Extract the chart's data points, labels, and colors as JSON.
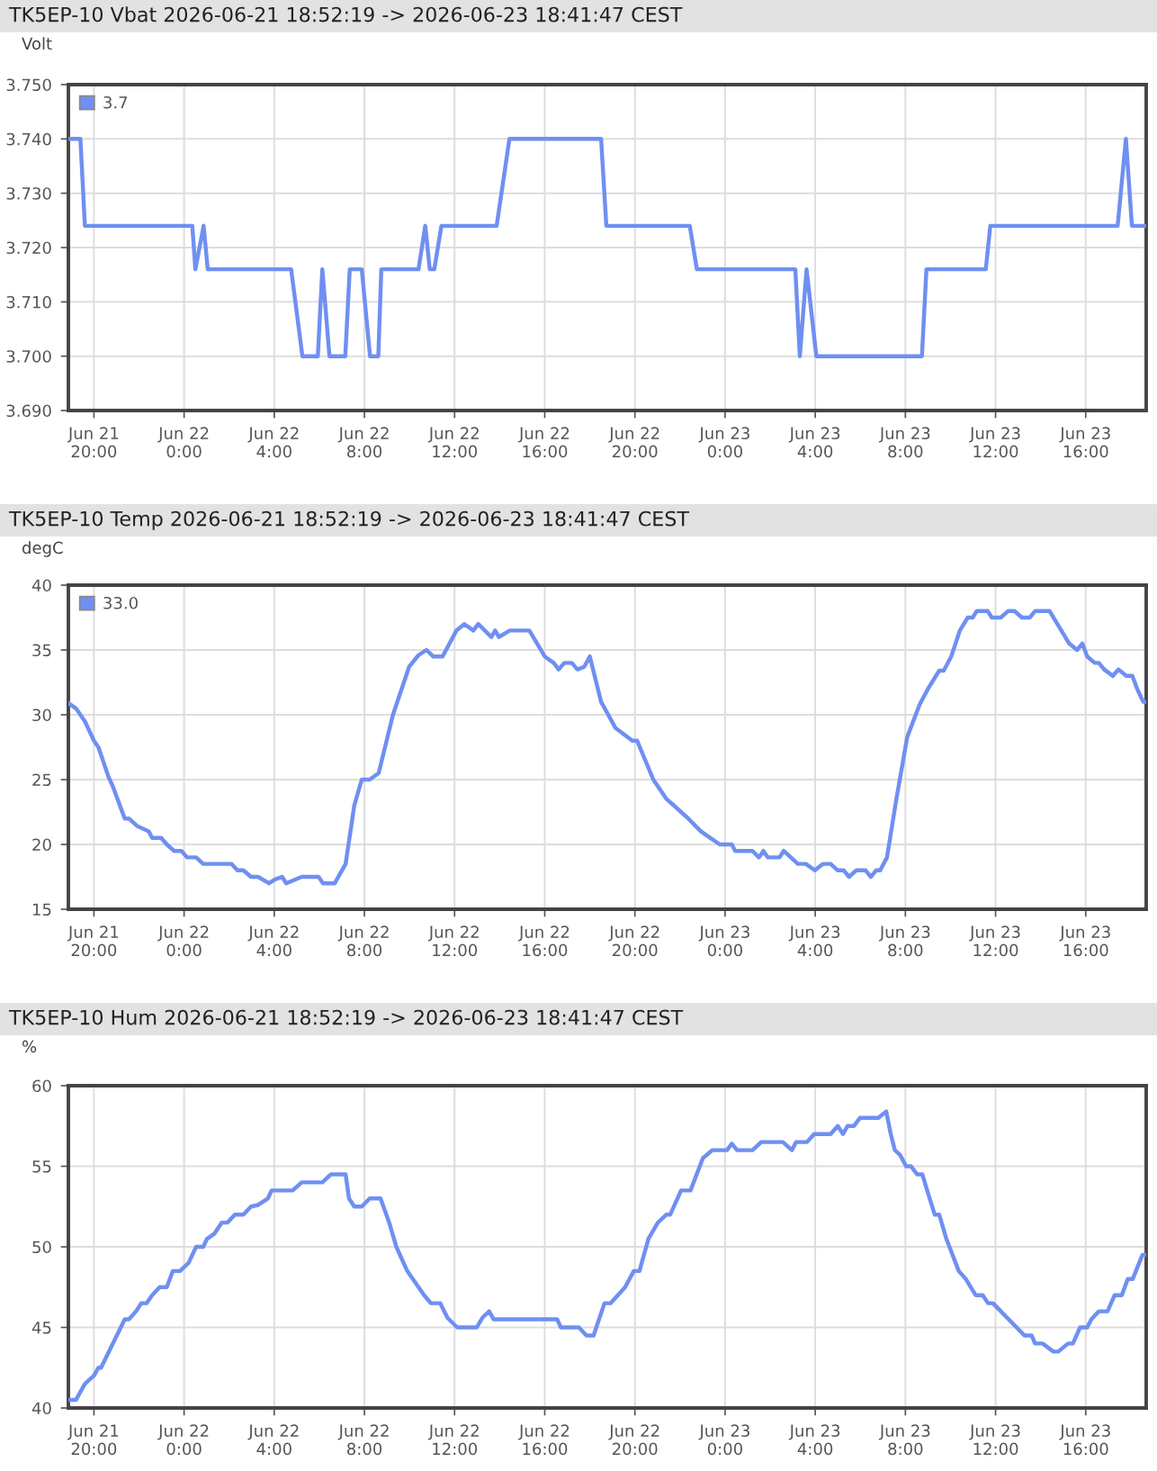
{
  "chart_data": [
    {
      "type": "line",
      "title": "TK5EP-10 Vbat 2026-06-21 18:52:19 -> 2026-06-23 18:41:47 CEST",
      "ylabel": "Volt",
      "legend": "top left",
      "grid": true,
      "xlim": [
        "2026-06-21T18:52",
        "2026-06-23T18:41"
      ],
      "ylim": [
        3.69,
        3.75
      ],
      "xticks": [
        {
          "value": "2026-06-21T20:00",
          "label": "Jun 21\n20:00"
        },
        {
          "value": "2026-06-22T00:00",
          "label": "Jun 22\n0:00"
        },
        {
          "value": "2026-06-22T04:00",
          "label": "Jun 22\n4:00"
        },
        {
          "value": "2026-06-22T08:00",
          "label": "Jun 22\n8:00"
        },
        {
          "value": "2026-06-22T12:00",
          "label": "Jun 22\n12:00"
        },
        {
          "value": "2026-06-22T16:00",
          "label": "Jun 22\n16:00"
        },
        {
          "value": "2026-06-22T20:00",
          "label": "Jun 22\n20:00"
        },
        {
          "value": "2026-06-23T00:00",
          "label": "Jun 23\n0:00"
        },
        {
          "value": "2026-06-23T04:00",
          "label": "Jun 23\n4:00"
        },
        {
          "value": "2026-06-23T08:00",
          "label": "Jun 23\n8:00"
        },
        {
          "value": "2026-06-23T12:00",
          "label": "Jun 23\n12:00"
        },
        {
          "value": "2026-06-23T16:00",
          "label": "Jun 23\n16:00"
        }
      ],
      "yticks": [
        {
          "value": 3.69,
          "label": "3.690"
        },
        {
          "value": 3.7,
          "label": "3.700"
        },
        {
          "value": 3.71,
          "label": "3.710"
        },
        {
          "value": 3.72,
          "label": "3.720"
        },
        {
          "value": 3.73,
          "label": "3.730"
        },
        {
          "value": 3.74,
          "label": "3.740"
        },
        {
          "value": 3.75,
          "label": "3.750"
        }
      ],
      "series": [
        {
          "name": "3.7",
          "color": "#6f8ff2",
          "x": [
            "2026-06-21T18:52",
            "2026-06-21T19:24",
            "2026-06-21T19:36",
            "2026-06-22T00:22",
            "2026-06-22T00:30",
            "2026-06-22T00:52",
            "2026-06-22T01:03",
            "2026-06-22T04:45",
            "2026-06-22T05:15",
            "2026-06-22T05:56",
            "2026-06-22T06:08",
            "2026-06-22T06:27",
            "2026-06-22T07:09",
            "2026-06-22T07:21",
            "2026-06-22T07:53",
            "2026-06-22T08:15",
            "2026-06-22T08:37",
            "2026-06-22T08:45",
            "2026-06-22T10:24",
            "2026-06-22T10:42",
            "2026-06-22T10:54",
            "2026-06-22T11:06",
            "2026-06-22T11:25",
            "2026-06-22T13:52",
            "2026-06-22T14:26",
            "2026-06-22T18:30",
            "2026-06-22T18:44",
            "2026-06-22T22:26",
            "2026-06-22T22:45",
            "2026-06-23T03:07",
            "2026-06-23T03:19",
            "2026-06-23T03:37",
            "2026-06-23T04:03",
            "2026-06-23T08:44",
            "2026-06-23T08:56",
            "2026-06-23T11:34",
            "2026-06-23T11:46",
            "2026-06-23T17:25",
            "2026-06-23T17:47",
            "2026-06-23T18:03",
            "2026-06-23T18:41"
          ],
          "values": [
            3.74,
            3.74,
            3.724,
            3.724,
            3.716,
            3.724,
            3.716,
            3.716,
            3.7,
            3.7,
            3.716,
            3.7,
            3.7,
            3.716,
            3.716,
            3.7,
            3.7,
            3.716,
            3.716,
            3.724,
            3.716,
            3.716,
            3.724,
            3.724,
            3.74,
            3.74,
            3.724,
            3.724,
            3.716,
            3.716,
            3.7,
            3.716,
            3.7,
            3.7,
            3.716,
            3.716,
            3.724,
            3.724,
            3.74,
            3.724,
            3.724
          ]
        }
      ]
    },
    {
      "type": "line",
      "title": "TK5EP-10 Temp 2026-06-21 18:52:19 -> 2026-06-23 18:41:47 CEST",
      "ylabel": "degC",
      "legend": "top left",
      "grid": true,
      "xlim": [
        "2026-06-21T18:52",
        "2026-06-23T18:41"
      ],
      "ylim": [
        15,
        40
      ],
      "xticks": [
        {
          "value": "2026-06-21T20:00",
          "label": "Jun 21\n20:00"
        },
        {
          "value": "2026-06-22T00:00",
          "label": "Jun 22\n0:00"
        },
        {
          "value": "2026-06-22T04:00",
          "label": "Jun 22\n4:00"
        },
        {
          "value": "2026-06-22T08:00",
          "label": "Jun 22\n8:00"
        },
        {
          "value": "2026-06-22T12:00",
          "label": "Jun 22\n12:00"
        },
        {
          "value": "2026-06-22T16:00",
          "label": "Jun 22\n16:00"
        },
        {
          "value": "2026-06-22T20:00",
          "label": "Jun 22\n20:00"
        },
        {
          "value": "2026-06-23T00:00",
          "label": "Jun 23\n0:00"
        },
        {
          "value": "2026-06-23T04:00",
          "label": "Jun 23\n4:00"
        },
        {
          "value": "2026-06-23T08:00",
          "label": "Jun 23\n8:00"
        },
        {
          "value": "2026-06-23T12:00",
          "label": "Jun 23\n12:00"
        },
        {
          "value": "2026-06-23T16:00",
          "label": "Jun 23\n16:00"
        }
      ],
      "yticks": [
        15,
        20,
        25,
        30,
        35,
        40
      ],
      "series": [
        {
          "name": "33.0",
          "color": "#6f8ff2",
          "x": [
            "2026-06-21T18:52",
            "2026-06-21T19:12",
            "2026-06-21T19:36",
            "2026-06-21T20:00",
            "2026-06-21T20:12",
            "2026-06-21T20:39",
            "2026-06-21T20:50",
            "2026-06-21T21:22",
            "2026-06-21T21:33",
            "2026-06-21T21:56",
            "2026-06-21T22:26",
            "2026-06-21T22:35",
            "2026-06-21T22:59",
            "2026-06-21T23:14",
            "2026-06-21T23:33",
            "2026-06-21T23:53",
            "2026-06-22T00:08",
            "2026-06-22T00:32",
            "2026-06-22T00:51",
            "2026-06-22T02:06",
            "2026-06-22T02:22",
            "2026-06-22T02:38",
            "2026-06-22T02:58",
            "2026-06-22T03:17",
            "2026-06-22T03:46",
            "2026-06-22T04:02",
            "2026-06-22T04:21",
            "2026-06-22T04:32",
            "2026-06-22T05:13",
            "2026-06-22T05:58",
            "2026-06-22T06:10",
            "2026-06-22T06:41",
            "2026-06-22T07:10",
            "2026-06-22T07:33",
            "2026-06-22T07:53",
            "2026-06-22T08:14",
            "2026-06-22T08:38",
            "2026-06-22T09:16",
            "2026-06-22T09:59",
            "2026-06-22T10:24",
            "2026-06-22T10:45",
            "2026-06-22T11:03",
            "2026-06-22T11:28",
            "2026-06-22T12:05",
            "2026-06-22T12:26",
            "2026-06-22T12:50",
            "2026-06-22T13:03",
            "2026-06-22T13:38",
            "2026-06-22T13:48",
            "2026-06-22T13:58",
            "2026-06-22T14:27",
            "2026-06-22T15:19",
            "2026-06-22T16:00",
            "2026-06-22T16:24",
            "2026-06-22T16:37",
            "2026-06-22T16:52",
            "2026-06-22T17:12",
            "2026-06-22T17:27",
            "2026-06-22T17:45",
            "2026-06-22T18:00",
            "2026-06-22T18:30",
            "2026-06-22T19:08",
            "2026-06-22T19:53",
            "2026-06-22T20:06",
            "2026-06-22T20:49",
            "2026-06-22T21:24",
            "2026-06-22T21:44",
            "2026-06-22T22:03",
            "2026-06-22T22:22",
            "2026-06-22T22:56",
            "2026-06-22T23:21",
            "2026-06-22T23:46",
            "2026-06-23T00:18",
            "2026-06-23T00:27",
            "2026-06-23T01:13",
            "2026-06-23T01:30",
            "2026-06-23T01:42",
            "2026-06-23T01:54",
            "2026-06-23T02:25",
            "2026-06-23T02:36",
            "2026-06-23T02:55",
            "2026-06-23T03:14",
            "2026-06-23T03:35",
            "2026-06-23T03:59",
            "2026-06-23T04:21",
            "2026-06-23T04:41",
            "2026-06-23T05:00",
            "2026-06-23T05:16",
            "2026-06-23T05:30",
            "2026-06-23T05:49",
            "2026-06-23T06:14",
            "2026-06-23T06:28",
            "2026-06-23T06:42",
            "2026-06-23T06:53",
            "2026-06-23T07:11",
            "2026-06-23T07:36",
            "2026-06-23T08:05",
            "2026-06-23T08:38",
            "2026-06-23T09:00",
            "2026-06-23T09:30",
            "2026-06-23T09:42",
            "2026-06-23T10:02",
            "2026-06-23T10:25",
            "2026-06-23T10:46",
            "2026-06-23T10:59",
            "2026-06-23T11:10",
            "2026-06-23T11:39",
            "2026-06-23T11:50",
            "2026-06-23T12:14",
            "2026-06-23T12:33",
            "2026-06-23T12:51",
            "2026-06-23T13:10",
            "2026-06-23T13:31",
            "2026-06-23T13:45",
            "2026-06-23T14:24",
            "2026-06-23T15:16",
            "2026-06-23T15:37",
            "2026-06-23T15:51",
            "2026-06-23T16:04",
            "2026-06-23T16:24",
            "2026-06-23T16:35",
            "2026-06-23T16:49",
            "2026-06-23T17:12",
            "2026-06-23T17:27",
            "2026-06-23T17:48",
            "2026-06-23T18:04",
            "2026-06-23T18:17",
            "2026-06-23T18:33",
            "2026-06-23T18:41"
          ],
          "values": [
            30.9,
            30.5,
            29.5,
            28,
            27.5,
            25.2,
            24.5,
            22,
            22,
            21.4,
            21,
            20.5,
            20.5,
            20,
            19.5,
            19.5,
            19,
            19,
            18.5,
            18.5,
            18,
            18,
            17.5,
            17.5,
            17,
            17.3,
            17.5,
            17,
            17.5,
            17.5,
            17,
            17,
            18.5,
            23,
            25,
            25,
            25.5,
            30,
            33.7,
            34.6,
            35,
            34.5,
            34.5,
            36.5,
            37,
            36.5,
            37,
            36,
            36.5,
            36,
            36.5,
            36.5,
            34.5,
            34,
            33.5,
            34,
            34,
            33.5,
            33.7,
            34.5,
            31,
            29,
            28,
            28,
            25,
            23.5,
            23,
            22.5,
            22,
            21,
            20.5,
            20,
            20,
            19.5,
            19.5,
            19,
            19.5,
            19,
            19,
            19.5,
            19,
            18.5,
            18.5,
            18,
            18.5,
            18.5,
            18,
            18,
            17.5,
            18,
            18,
            17.5,
            18,
            18,
            19,
            23.5,
            28.3,
            30.8,
            32,
            33.4,
            33.4,
            34.5,
            36.5,
            37.5,
            37.5,
            38,
            38,
            37.5,
            37.5,
            38,
            38,
            37.5,
            37.5,
            38,
            38,
            35.5,
            35,
            35.5,
            34.5,
            34,
            34,
            33.5,
            33,
            33.5,
            33,
            33,
            32,
            31,
            31
          ]
        }
      ]
    },
    {
      "type": "line",
      "title": "TK5EP-10 Hum 2026-06-21 18:52:19 -> 2026-06-23 18:41:47 CEST",
      "ylabel": "%",
      "grid": true,
      "xlim": [
        "2026-06-21T18:52",
        "2026-06-23T18:41"
      ],
      "ylim": [
        40,
        60
      ],
      "xticks": [
        {
          "value": "2026-06-21T20:00",
          "label": "Jun 21\n20:00"
        },
        {
          "value": "2026-06-22T00:00",
          "label": "Jun 22\n0:00"
        },
        {
          "value": "2026-06-22T04:00",
          "label": "Jun 22\n4:00"
        },
        {
          "value": "2026-06-22T08:00",
          "label": "Jun 22\n8:00"
        },
        {
          "value": "2026-06-22T12:00",
          "label": "Jun 22\n12:00"
        },
        {
          "value": "2026-06-22T16:00",
          "label": "Jun 22\n16:00"
        },
        {
          "value": "2026-06-22T20:00",
          "label": "Jun 22\n20:00"
        },
        {
          "value": "2026-06-23T00:00",
          "label": "Jun 23\n0:00"
        },
        {
          "value": "2026-06-23T04:00",
          "label": "Jun 23\n4:00"
        },
        {
          "value": "2026-06-23T08:00",
          "label": "Jun 23\n8:00"
        },
        {
          "value": "2026-06-23T12:00",
          "label": "Jun 23\n12:00"
        },
        {
          "value": "2026-06-23T16:00",
          "label": "Jun 23\n16:00"
        }
      ],
      "yticks": [
        40,
        45,
        50,
        55,
        60
      ],
      "series": [
        {
          "color": "#6f8ff2",
          "x": [
            "2026-06-21T18:52",
            "2026-06-21T19:12",
            "2026-06-21T19:36",
            "2026-06-21T20:00",
            "2026-06-21T20:12",
            "2026-06-21T20:19",
            "2026-06-21T21:22",
            "2026-06-21T21:33",
            "2026-06-21T21:52",
            "2026-06-21T22:06",
            "2026-06-21T22:20",
            "2026-06-21T22:35",
            "2026-06-21T22:55",
            "2026-06-21T23:14",
            "2026-06-21T23:30",
            "2026-06-21T23:49",
            "2026-06-22T00:12",
            "2026-06-22T00:32",
            "2026-06-22T00:51",
            "2026-06-22T01:01",
            "2026-06-22T01:20",
            "2026-06-22T01:40",
            "2026-06-22T01:55",
            "2026-06-22T02:15",
            "2026-06-22T02:38",
            "2026-06-22T02:58",
            "2026-06-22T03:17",
            "2026-06-22T03:43",
            "2026-06-22T03:53",
            "2026-06-22T04:49",
            "2026-06-22T05:13",
            "2026-06-22T06:08",
            "2026-06-22T06:31",
            "2026-06-22T07:10",
            "2026-06-22T07:19",
            "2026-06-22T07:33",
            "2026-06-22T07:53",
            "2026-06-22T08:14",
            "2026-06-22T08:43",
            "2026-06-22T09:06",
            "2026-06-22T09:25",
            "2026-06-22T09:54",
            "2026-06-22T10:24",
            "2026-06-22T10:39",
            "2026-06-22T10:57",
            "2026-06-22T11:22",
            "2026-06-22T11:41",
            "2026-06-22T12:07",
            "2026-06-22T12:59",
            "2026-06-22T13:14",
            "2026-06-22T13:32",
            "2026-06-22T13:44",
            "2026-06-22T16:33",
            "2026-06-22T16:43",
            "2026-06-22T17:31",
            "2026-06-22T17:51",
            "2026-06-22T18:10",
            "2026-06-22T18:39",
            "2026-06-22T18:55",
            "2026-06-22T19:34",
            "2026-06-22T19:57",
            "2026-06-22T20:12",
            "2026-06-22T20:36",
            "2026-06-22T21:01",
            "2026-06-22T21:24",
            "2026-06-22T21:34",
            "2026-06-22T22:03",
            "2026-06-22T22:28",
            "2026-06-22T23:01",
            "2026-06-22T23:26",
            "2026-06-23T00:05",
            "2026-06-23T00:18",
            "2026-06-23T00:32",
            "2026-06-23T01:13",
            "2026-06-23T01:36",
            "2026-06-23T02:34",
            "2026-06-23T02:58",
            "2026-06-23T03:09",
            "2026-06-23T03:38",
            "2026-06-23T03:57",
            "2026-06-23T04:41",
            "2026-06-23T05:00",
            "2026-06-23T05:14",
            "2026-06-23T05:26",
            "2026-06-23T05:43",
            "2026-06-23T05:59",
            "2026-06-23T06:48",
            "2026-06-23T07:09",
            "2026-06-23T07:21",
            "2026-06-23T07:32",
            "2026-06-23T07:46",
            "2026-06-23T08:02",
            "2026-06-23T08:15",
            "2026-06-23T08:31",
            "2026-06-23T08:45",
            "2026-06-23T08:58",
            "2026-06-23T09:18",
            "2026-06-23T09:30",
            "2026-06-23T09:49",
            "2026-06-23T10:22",
            "2026-06-23T10:41",
            "2026-06-23T11:07",
            "2026-06-23T11:26",
            "2026-06-23T11:40",
            "2026-06-23T11:53",
            "2026-06-23T13:17",
            "2026-06-23T13:36",
            "2026-06-23T13:45",
            "2026-06-23T14:05",
            "2026-06-23T14:34",
            "2026-06-23T14:47",
            "2026-06-23T15:13",
            "2026-06-23T15:26",
            "2026-06-23T15:45",
            "2026-06-23T16:04",
            "2026-06-23T16:15",
            "2026-06-23T16:35",
            "2026-06-23T16:58",
            "2026-06-23T17:17",
            "2026-06-23T17:36",
            "2026-06-23T17:52",
            "2026-06-23T18:05",
            "2026-06-23T18:31",
            "2026-06-23T18:41"
          ],
          "values": [
            40.5,
            40.5,
            41.5,
            42,
            42.5,
            42.5,
            45.5,
            45.5,
            46,
            46.5,
            46.5,
            47,
            47.5,
            47.5,
            48.5,
            48.5,
            49,
            50,
            50,
            50.5,
            50.8,
            51.5,
            51.5,
            52,
            52,
            52.5,
            52.6,
            53,
            53.5,
            53.5,
            54,
            54,
            54.5,
            54.5,
            53,
            52.5,
            52.5,
            53,
            53,
            51.5,
            50,
            48.5,
            47.5,
            47,
            46.5,
            46.5,
            45.6,
            45,
            45,
            45.6,
            46,
            45.5,
            45.5,
            45,
            45,
            44.5,
            44.5,
            46.5,
            46.5,
            47.5,
            48.5,
            48.5,
            50.5,
            51.5,
            52,
            52,
            53.5,
            53.5,
            55.5,
            56,
            56,
            56.4,
            56,
            56,
            56.5,
            56.5,
            56,
            56.5,
            56.5,
            57,
            57,
            57.5,
            57,
            57.5,
            57.5,
            58,
            58,
            58.4,
            57,
            56,
            55.7,
            55,
            55,
            54.5,
            54.5,
            53.5,
            52,
            52,
            50.5,
            48.5,
            48,
            47,
            47,
            46.5,
            46.5,
            44.5,
            44.5,
            44,
            44,
            43.5,
            43.5,
            44,
            44,
            45,
            45,
            45.5,
            46,
            46,
            47,
            47,
            48,
            48,
            49.5,
            49.5
          ]
        }
      ]
    }
  ]
}
